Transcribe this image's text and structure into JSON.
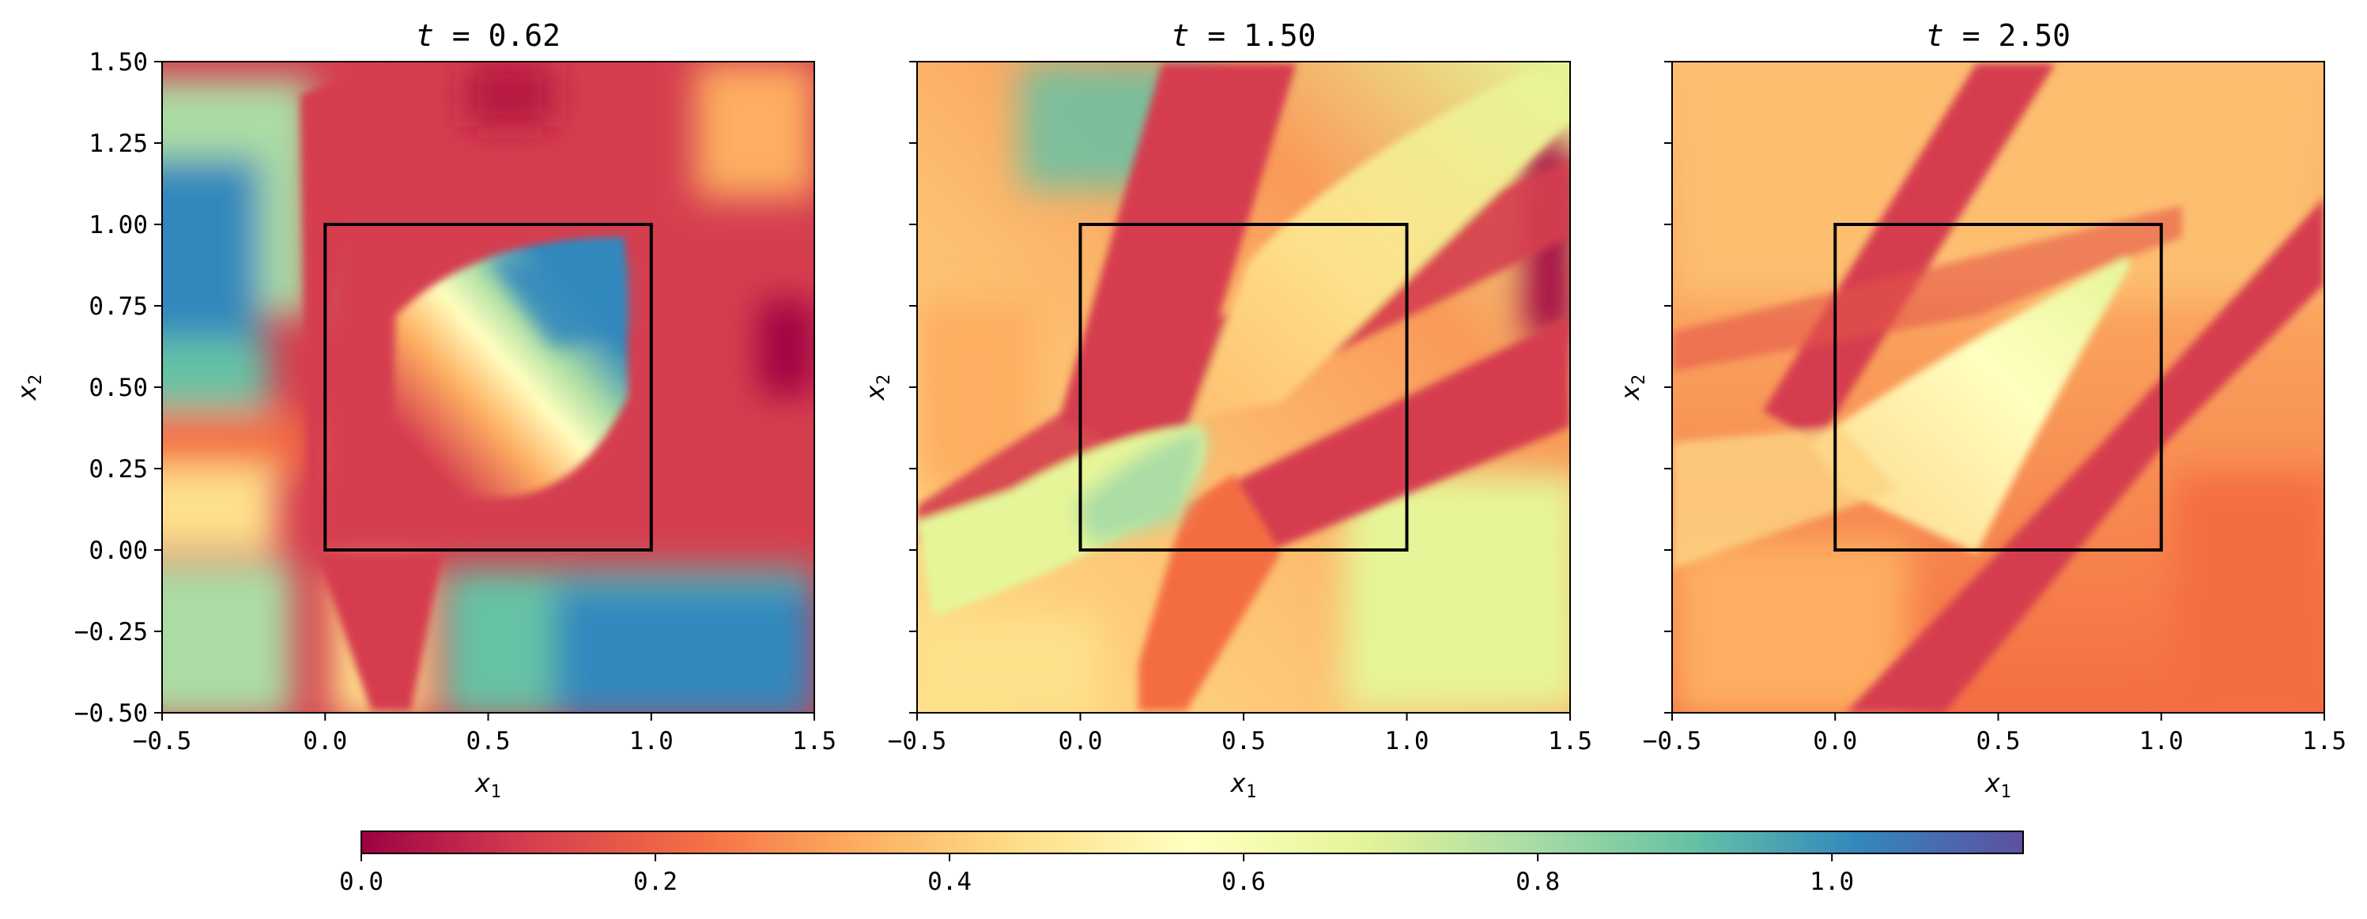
{
  "chart_data": {
    "type": "heatmap",
    "colormap": "Spectral",
    "colorbar": {
      "orientation": "horizontal",
      "placement": "bottom",
      "range": [
        0.0,
        1.13
      ],
      "ticks": [
        0.0,
        0.2,
        0.4,
        0.6,
        0.8,
        1.0
      ],
      "tick_labels": [
        "0.0",
        "0.2",
        "0.4",
        "0.6",
        "0.8",
        "1.0"
      ]
    },
    "panels": [
      {
        "title_prefix": "t",
        "title_value": "0.62",
        "xlabel_symbol": "x",
        "xlabel_sub": "1",
        "ylabel_symbol": "x",
        "ylabel_sub": "2",
        "xlim": [
          -0.5,
          1.5
        ],
        "ylim": [
          -0.5,
          1.5
        ],
        "x_ticks": [
          "−0.5",
          "0.0",
          "0.5",
          "1.0",
          "1.5"
        ],
        "y_ticks": [
          "−0.50",
          "−0.25",
          "0.00",
          "0.25",
          "0.50",
          "0.75",
          "1.00",
          "1.25",
          "1.50"
        ],
        "show_y_tick_labels": true,
        "reference_box": {
          "x": [
            0,
            1
          ],
          "y": [
            0,
            1
          ]
        }
      },
      {
        "title_prefix": "t",
        "title_value": "1.50",
        "xlabel_symbol": "x",
        "xlabel_sub": "1",
        "ylabel_symbol": "x",
        "ylabel_sub": "2",
        "xlim": [
          -0.5,
          1.5
        ],
        "ylim": [
          -0.5,
          1.5
        ],
        "x_ticks": [
          "−0.5",
          "0.0",
          "0.5",
          "1.0",
          "1.5"
        ],
        "y_ticks": [],
        "show_y_tick_labels": false,
        "reference_box": {
          "x": [
            0,
            1
          ],
          "y": [
            0,
            1
          ]
        }
      },
      {
        "title_prefix": "t",
        "title_value": "2.50",
        "xlabel_symbol": "x",
        "xlabel_sub": "1",
        "ylabel_symbol": "x",
        "ylabel_sub": "2",
        "xlim": [
          -0.5,
          1.5
        ],
        "ylim": [
          -0.5,
          1.5
        ],
        "x_ticks": [
          "−0.5",
          "0.0",
          "0.5",
          "1.0",
          "1.5"
        ],
        "y_ticks": [],
        "show_y_tick_labels": false,
        "reference_box": {
          "x": [
            0,
            1
          ],
          "y": [
            0,
            1
          ]
        }
      }
    ]
  }
}
